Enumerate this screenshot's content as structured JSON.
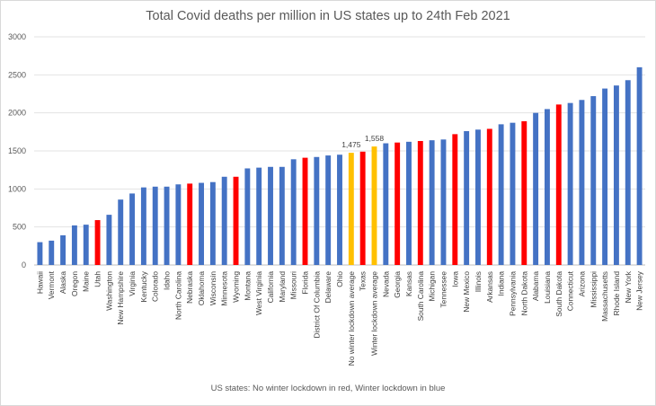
{
  "chart_data": {
    "type": "bar",
    "title": "Total Covid deaths per million in US states up to 24th Feb 2021",
    "footer": "US states: No winter lockdown in red, Winter lockdown in blue",
    "ylim": [
      0,
      3000
    ],
    "yticks": [
      "0",
      "500",
      "1000",
      "1500",
      "2000",
      "2500",
      "3000"
    ],
    "grid": true,
    "colors": {
      "lockdown": "#4472c4",
      "no_lockdown": "#ff0000",
      "average": "#ffc000"
    },
    "categories": [
      "Hawaii",
      "Vermont",
      "Alaska",
      "Oregon",
      "Maine",
      "Utah",
      "Washington",
      "New Hampshire",
      "Virginia",
      "Kentucky",
      "Colorado",
      "Idaho",
      "North Carolina",
      "Nebraska",
      "Oklahoma",
      "Wisconsin",
      "Minnesota",
      "Wyoming",
      "Montana",
      "West Virginia",
      "California",
      "Maryland",
      "Missouri",
      "Florida",
      "District Of Columbia",
      "Delaware",
      "Ohio",
      "No winter lockdown average",
      "Texas",
      "Winter lockdown average",
      "Nevada",
      "Georgia",
      "Kansas",
      "South Carolina",
      "Michigan",
      "Tennessee",
      "Iowa",
      "New Mexico",
      "Illinois",
      "Arkansas",
      "Indiana",
      "Pennsylvania",
      "North Dakota",
      "Alabama",
      "Louisiana",
      "South Dakota",
      "Connecticut",
      "Arizona",
      "Mississippi",
      "Massachusetts",
      "Rhode Island",
      "New York",
      "New Jersey"
    ],
    "values": [
      300,
      320,
      390,
      520,
      530,
      590,
      660,
      860,
      940,
      1020,
      1030,
      1030,
      1060,
      1070,
      1080,
      1090,
      1160,
      1160,
      1270,
      1280,
      1290,
      1290,
      1390,
      1410,
      1420,
      1440,
      1450,
      1475,
      1490,
      1558,
      1600,
      1610,
      1620,
      1630,
      1640,
      1650,
      1720,
      1760,
      1780,
      1790,
      1850,
      1870,
      1890,
      2000,
      2050,
      2110,
      2130,
      2170,
      2220,
      2320,
      2360,
      2430,
      2600
    ],
    "groups": [
      "L",
      "L",
      "L",
      "L",
      "L",
      "N",
      "L",
      "L",
      "L",
      "L",
      "L",
      "L",
      "L",
      "N",
      "L",
      "L",
      "L",
      "N",
      "L",
      "L",
      "L",
      "L",
      "L",
      "N",
      "L",
      "L",
      "L",
      "A",
      "N",
      "A",
      "L",
      "N",
      "L",
      "N",
      "L",
      "L",
      "N",
      "L",
      "L",
      "N",
      "L",
      "L",
      "N",
      "L",
      "L",
      "N",
      "L",
      "L",
      "L",
      "L",
      "L",
      "L",
      "L"
    ],
    "data_labels": [
      {
        "category": "No winter lockdown average",
        "text": "1,475"
      },
      {
        "category": "Winter lockdown average",
        "text": "1,558"
      }
    ]
  }
}
